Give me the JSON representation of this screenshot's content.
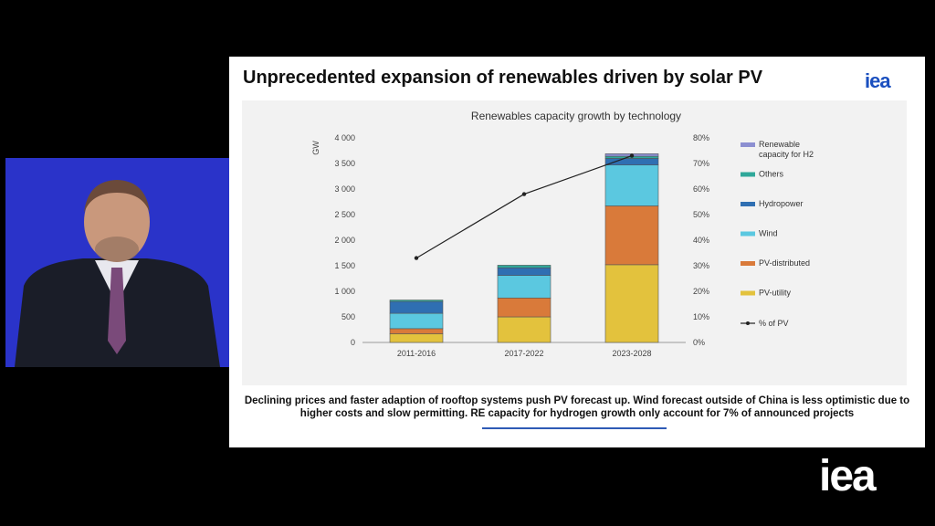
{
  "slide": {
    "title": "Unprecedented expansion of renewables driven by solar PV",
    "logo": "iea",
    "note": "Declining prices and faster adaption of rooftop systems push PV forecast up. Wind forecast outside of China is less optimistic due to higher costs and slow permitting. RE capacity for hydrogen growth only account for 7% of announced projects"
  },
  "corner_logo": "iea",
  "colors": {
    "background": "#000000",
    "speaker_backdrop": "#2a33c9",
    "pv_utility": "#e3c23d",
    "pv_distributed": "#d97a3a",
    "wind": "#5bc8e0",
    "hydropower": "#2f6fb2",
    "others": "#2fa89a",
    "h2": "#8c8fd1",
    "pv_share_line": "#222222"
  },
  "chart_data": {
    "type": "bar",
    "title": "Renewables capacity growth by technology",
    "ylabel": "GW",
    "categories": [
      "2011-2016",
      "2017-2022",
      "2023-2028"
    ],
    "ylim": [
      0,
      4000
    ],
    "y_ticks": [
      "0",
      "500",
      "1 000",
      "1 500",
      "2 000",
      "2 500",
      "3 000",
      "3 500",
      "4 000"
    ],
    "y2lim": [
      0,
      80
    ],
    "y2_ticks": [
      "0%",
      "10%",
      "20%",
      "30%",
      "40%",
      "50%",
      "60%",
      "70%",
      "80%"
    ],
    "legend_position": "right",
    "series": [
      {
        "name": "PV-utility",
        "values": [
          170,
          500,
          1520
        ],
        "color": "#e3c23d"
      },
      {
        "name": "PV-distributed",
        "values": [
          100,
          370,
          1150
        ],
        "color": "#d97a3a"
      },
      {
        "name": "Wind",
        "values": [
          300,
          440,
          800
        ],
        "color": "#5bc8e0"
      },
      {
        "name": "Hydropower",
        "values": [
          230,
          150,
          130
        ],
        "color": "#2f6fb2"
      },
      {
        "name": "Others",
        "values": [
          30,
          50,
          40
        ],
        "color": "#2fa89a"
      },
      {
        "name": "Renewable capacity for H2",
        "values": [
          0,
          0,
          50
        ],
        "color": "#8c8fd1"
      }
    ],
    "line": {
      "name": "% of PV",
      "values": [
        33,
        58,
        73
      ],
      "color": "#222222"
    },
    "legend": [
      "Renewable capacity for H2",
      "Others",
      "Hydropower",
      "Wind",
      "PV-distributed",
      "PV-utility",
      "% of PV"
    ]
  }
}
